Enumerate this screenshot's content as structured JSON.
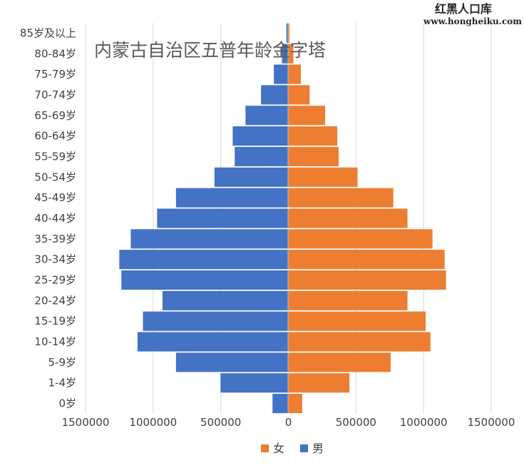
{
  "watermark": {
    "title": "红黑人口库",
    "url": "www.hongheiku.com"
  },
  "chart_data": {
    "type": "bar",
    "orientation": "horizontal-population-pyramid",
    "title": "内蒙古自治区五普年龄金字塔",
    "categories": [
      "0岁",
      "1-4岁",
      "5-9岁",
      "10-14岁",
      "15-19岁",
      "20-24岁",
      "25-29岁",
      "30-34岁",
      "35-39岁",
      "40-44岁",
      "45-49岁",
      "50-54岁",
      "55-59岁",
      "60-64岁",
      "65-69岁",
      "70-74岁",
      "75-79岁",
      "80-84岁",
      "85岁及以上"
    ],
    "series": [
      {
        "name": "男",
        "color": "#4472C4",
        "values": [
          115000,
          500000,
          830000,
          1115000,
          1075000,
          930000,
          1235000,
          1250000,
          1165000,
          970000,
          830000,
          545000,
          395000,
          410000,
          315000,
          200000,
          105000,
          45000,
          12000
        ]
      },
      {
        "name": "女",
        "color": "#ED7D31",
        "values": [
          105000,
          455000,
          760000,
          1055000,
          1020000,
          885000,
          1170000,
          1160000,
          1070000,
          885000,
          780000,
          515000,
          375000,
          365000,
          275000,
          160000,
          95000,
          40000,
          10000
        ]
      }
    ],
    "x_ticks": [
      "1500000",
      "1000000",
      "500000",
      "0",
      "500000",
      "1000000",
      "1500000"
    ],
    "xlim": [
      -1500000,
      1500000
    ],
    "grid": true,
    "legend_position": "bottom",
    "legend_order": [
      "女",
      "男"
    ]
  }
}
